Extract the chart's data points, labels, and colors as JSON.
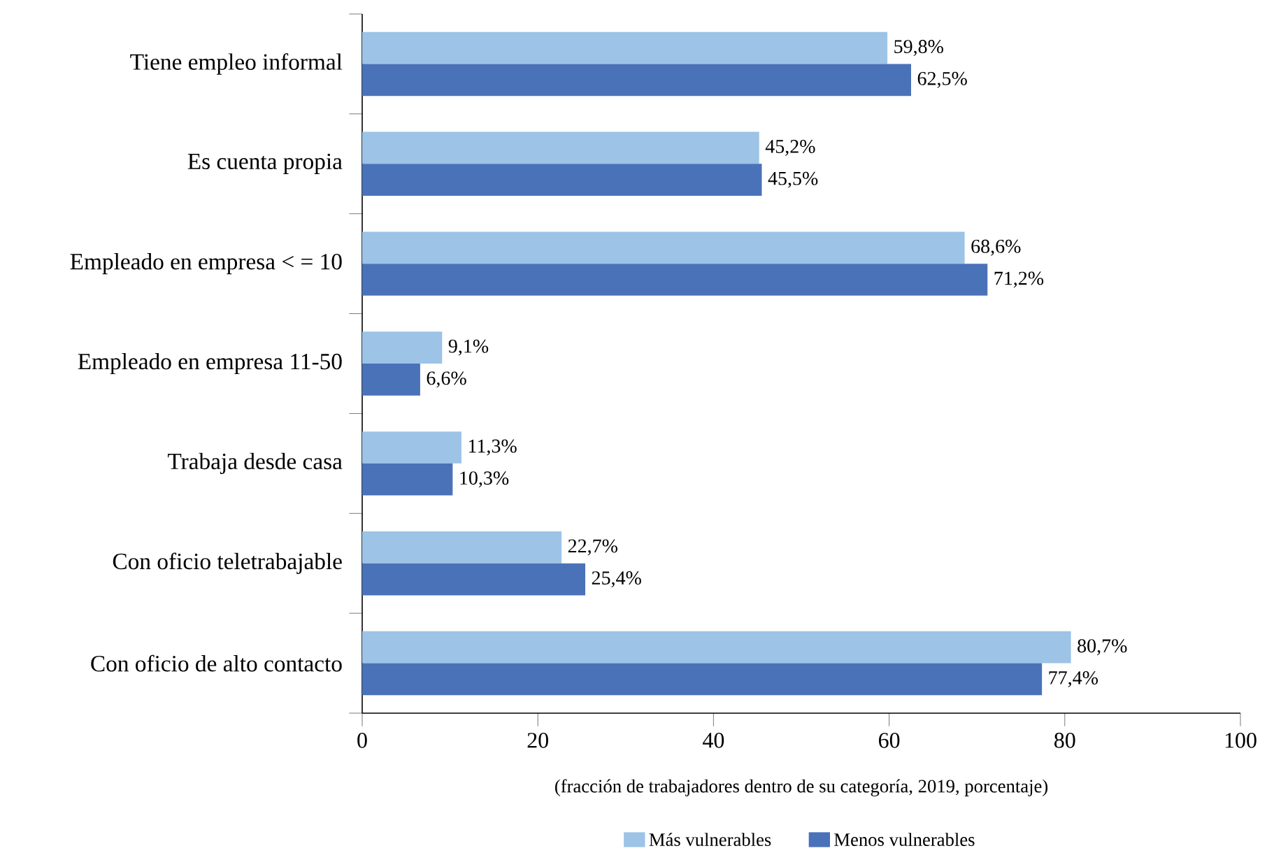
{
  "chart_data": {
    "type": "bar",
    "orientation": "horizontal",
    "categories": [
      "Tiene empleo informal",
      "Es cuenta propia",
      "Empleado en empresa < = 10",
      "Empleado en empresa 11-50",
      "Trabaja desde casa",
      "Con oficio teletrabajable",
      "Con oficio de alto contacto"
    ],
    "series": [
      {
        "name": "Más vulnerables",
        "color": "#9dc3e6",
        "values": [
          59.8,
          45.2,
          68.6,
          9.1,
          11.3,
          22.7,
          80.7
        ],
        "value_labels": [
          "59,8%",
          "45,2%",
          "68,6%",
          "9,1%",
          "11,3%",
          "22,7%",
          "80,7%"
        ]
      },
      {
        "name": "Menos vulnerables",
        "color": "#4a72b8",
        "values": [
          62.5,
          45.5,
          71.2,
          6.6,
          10.3,
          25.4,
          77.4
        ],
        "value_labels": [
          "62,5%",
          "45,5%",
          "71,2%",
          "6,6%",
          "10,3%",
          "25,4%",
          "77,4%"
        ]
      }
    ],
    "xlabel": "(fracción de trabajadores dentro de su categoría, 2019, porcentaje)",
    "xlim": [
      0,
      100
    ],
    "xticks": [
      0,
      20,
      40,
      60,
      80,
      100
    ],
    "grid": false,
    "legend": "bottom"
  }
}
